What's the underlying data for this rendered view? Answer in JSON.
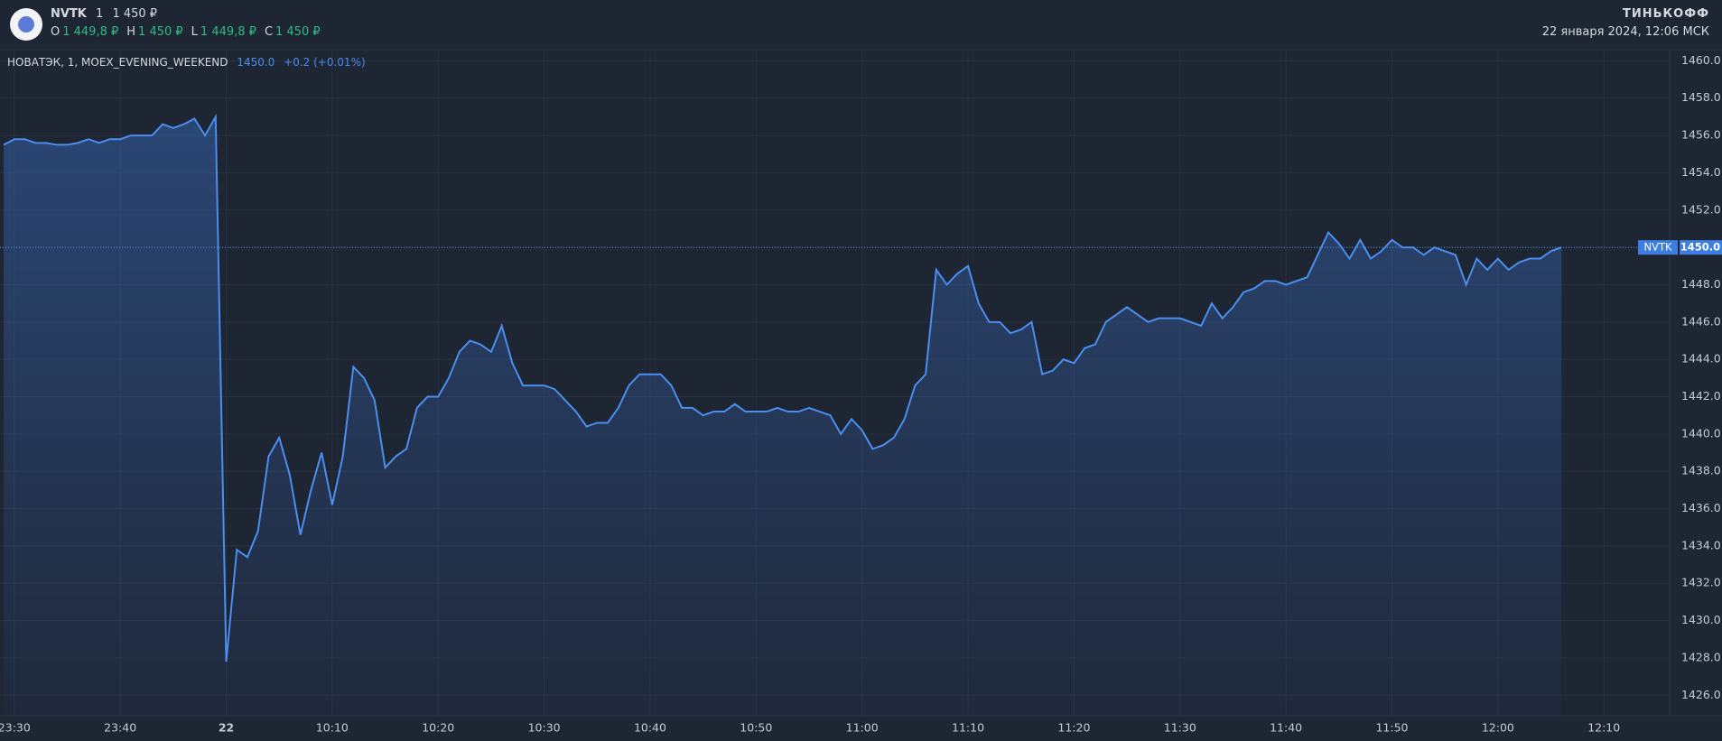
{
  "header": {
    "ticker": "NVTK",
    "interval": "1",
    "price": "1 450 ₽",
    "ohlc": [
      {
        "key": "O",
        "value": "1 449,8 ₽"
      },
      {
        "key": "H",
        "value": "1 450 ₽"
      },
      {
        "key": "L",
        "value": "1 449,8 ₽"
      },
      {
        "key": "C",
        "value": "1 450 ₽"
      }
    ],
    "legend_name": "НОВАТЭК, 1, MOEX_EVENING_WEEKEND",
    "legend_value": "1450.0",
    "legend_change": "+0.2 (+0.01%)",
    "brand": "ТИНЬКОФФ",
    "datetime": "22 января 2024, 12:06 МСК"
  },
  "chart_data": {
    "type": "area",
    "color": "#4a8ef0",
    "grid": true,
    "categories": [
      null,
      "23:30",
      null,
      null,
      null,
      null,
      null,
      null,
      null,
      null,
      null,
      "23:40",
      null,
      null,
      null,
      null,
      null,
      null,
      null,
      null,
      null,
      "22",
      null,
      null,
      null,
      null,
      null,
      null,
      null,
      null,
      null,
      "10:10",
      null,
      null,
      null,
      null,
      null,
      null,
      null,
      null,
      null,
      "10:20",
      null,
      null,
      null,
      null,
      null,
      null,
      null,
      null,
      null,
      "10:30",
      null,
      null,
      null,
      null,
      null,
      null,
      null,
      null,
      null,
      "10:40",
      null,
      null,
      null,
      null,
      null,
      null,
      null,
      null,
      null,
      "10:50",
      null,
      null,
      null,
      null,
      null,
      null,
      null,
      null,
      null,
      "11:00",
      null,
      null,
      null,
      null,
      null,
      null,
      null,
      null,
      null,
      "11:10",
      null,
      null,
      null,
      null,
      null,
      null,
      null,
      null,
      null,
      "11:20",
      null,
      null,
      null,
      null,
      null,
      null,
      null,
      null,
      null,
      "11:30",
      null,
      null,
      null,
      null,
      null,
      null,
      null,
      null,
      null,
      "11:40",
      null,
      null,
      null,
      null,
      null,
      null,
      null,
      null,
      null,
      "11:50",
      null,
      null,
      null,
      null,
      null,
      null,
      null,
      null,
      null,
      "12:00",
      null,
      null,
      null,
      null,
      null,
      null,
      null,
      null,
      null,
      "12:10"
    ],
    "values": [
      1455.5,
      1455.8,
      1455.8,
      1455.6,
      1455.6,
      1455.5,
      1455.5,
      1455.6,
      1455.8,
      1455.6,
      1455.8,
      1455.8,
      1456.0,
      1456.0,
      1456.0,
      1456.6,
      1456.4,
      1456.6,
      1456.9,
      1456.0,
      1457.0,
      1427.8,
      1433.8,
      1433.4,
      1434.8,
      1438.8,
      1439.8,
      1437.8,
      1434.6,
      1437.0,
      1439.0,
      1436.2,
      1438.8,
      1443.6,
      1443.0,
      1441.8,
      1438.2,
      1438.8,
      1439.2,
      1441.4,
      1442.0,
      1442.0,
      1443.0,
      1444.4,
      1445.0,
      1444.8,
      1444.4,
      1445.8,
      1443.8,
      1442.6,
      1442.6,
      1442.6,
      1442.4,
      1441.8,
      1441.2,
      1440.4,
      1440.6,
      1440.6,
      1441.4,
      1442.6,
      1443.2,
      1443.2,
      1443.2,
      1442.6,
      1441.4,
      1441.4,
      1441.0,
      1441.2,
      1441.2,
      1441.6,
      1441.2,
      1441.2,
      1441.2,
      1441.4,
      1441.2,
      1441.2,
      1441.4,
      1441.2,
      1441.0,
      1440.0,
      1440.8,
      1440.2,
      1439.2,
      1439.4,
      1439.8,
      1440.8,
      1442.6,
      1443.2,
      1448.8,
      1448.0,
      1448.6,
      1449.0,
      1447.0,
      1446.0,
      1446.0,
      1445.4,
      1445.6,
      1446.0,
      1443.2,
      1443.4,
      1444.0,
      1443.8,
      1444.6,
      1444.8,
      1446.0,
      1446.4,
      1446.8,
      1446.4,
      1446.0,
      1446.2,
      1446.2,
      1446.2,
      1446.0,
      1445.8,
      1447.0,
      1446.2,
      1446.8,
      1447.6,
      1447.8,
      1448.2,
      1448.2,
      1448.0,
      1448.2,
      1448.4,
      1449.6,
      1450.8,
      1450.2,
      1449.4,
      1450.4,
      1449.4,
      1449.8,
      1450.4,
      1450.0,
      1450.0,
      1449.6,
      1450.0,
      1449.8,
      1449.6,
      1448.0,
      1449.4,
      1448.8,
      1449.4,
      1448.8,
      1449.2,
      1449.4,
      1449.4,
      1449.8,
      1450.0,
      null,
      null,
      null,
      null
    ],
    "ylim": [
      1424.9,
      1460.6
    ],
    "yticks": [
      {
        "value": 1426,
        "label": "1426.0"
      },
      {
        "value": 1428,
        "label": "1428.0"
      },
      {
        "value": 1430,
        "label": "1430.0"
      },
      {
        "value": 1432,
        "label": "1432.0"
      },
      {
        "value": 1434,
        "label": "1434.0"
      },
      {
        "value": 1436,
        "label": "1436.0"
      },
      {
        "value": 1438,
        "label": "1438.0"
      },
      {
        "value": 1440,
        "label": "1440.0"
      },
      {
        "value": 1442,
        "label": "1442.0"
      },
      {
        "value": 1444,
        "label": "1444.0"
      },
      {
        "value": 1446,
        "label": "1446.0"
      },
      {
        "value": 1448,
        "label": "1448.0"
      },
      {
        "value": 1450,
        "label": "1450.0"
      },
      {
        "value": 1452,
        "label": "1452.0"
      },
      {
        "value": 1454,
        "label": "1454.0"
      },
      {
        "value": 1456,
        "label": "1456.0"
      },
      {
        "value": 1458,
        "label": "1458.0"
      },
      {
        "value": 1460,
        "label": "1460.0"
      }
    ],
    "price_line": {
      "name": "NVTK",
      "value": 1450,
      "label": "1450.0"
    }
  }
}
